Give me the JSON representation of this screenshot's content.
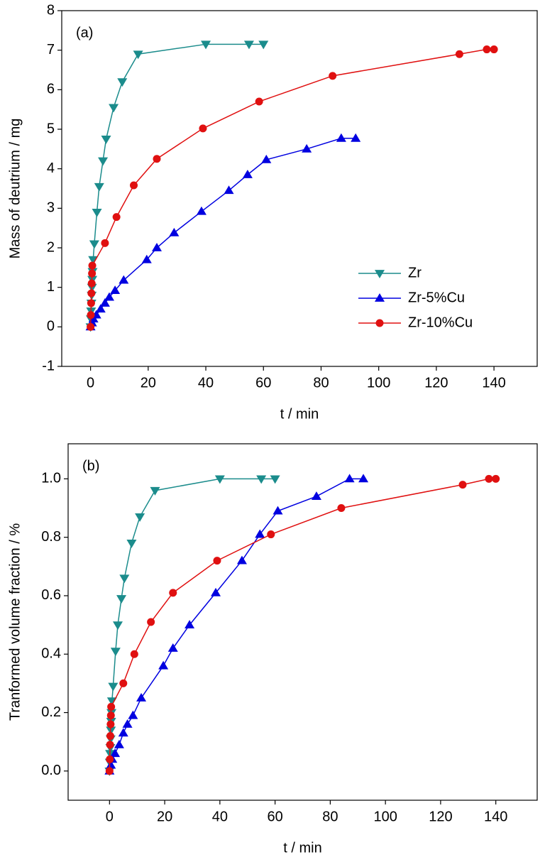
{
  "chart_data": [
    {
      "type": "line",
      "annotation": "(a)",
      "xlabel": "t / min",
      "ylabel": "Mass of deutrium / mg",
      "xlim": [
        -10,
        155
      ],
      "ylim": [
        -1,
        8
      ],
      "xticks": [
        0,
        20,
        40,
        60,
        80,
        100,
        120,
        140
      ],
      "yticks": [
        -1,
        0,
        1,
        2,
        3,
        4,
        5,
        6,
        7,
        8
      ],
      "legend": "lower right",
      "series": [
        {
          "name": "Zr",
          "color": "#1b8c8c",
          "marker": "triangle-down",
          "x": [
            0,
            0.1,
            0.2,
            0.3,
            0.4,
            0.5,
            0.6,
            0.7,
            0.9,
            1.3,
            2.2,
            3,
            4.3,
            5.4,
            8,
            11,
            16.5,
            40,
            55,
            60
          ],
          "values": [
            0,
            0.2,
            0.4,
            0.6,
            0.8,
            1.0,
            1.2,
            1.4,
            1.7,
            2.1,
            2.9,
            3.55,
            4.2,
            4.75,
            5.55,
            6.2,
            6.9,
            7.15,
            7.15,
            7.15
          ]
        },
        {
          "name": "Zr-5%Cu",
          "color": "#0000e0",
          "marker": "triangle-up",
          "x": [
            0,
            0.5,
            1,
            2,
            3.5,
            5,
            6.5,
            8.5,
            11.5,
            19.5,
            23,
            29,
            38.5,
            48,
            54.5,
            61,
            75,
            87,
            92
          ],
          "values": [
            0,
            0.1,
            0.2,
            0.3,
            0.45,
            0.6,
            0.75,
            0.92,
            1.18,
            1.7,
            2.0,
            2.38,
            2.92,
            3.45,
            3.85,
            4.23,
            4.5,
            4.77,
            4.77
          ]
        },
        {
          "name": "Zr-10%Cu",
          "color": "#e01010",
          "marker": "circle",
          "x": [
            0,
            0.1,
            0.2,
            0.3,
            0.4,
            0.5,
            0.6,
            5,
            9,
            15,
            23,
            39,
            58.5,
            84,
            128,
            137.5,
            140
          ],
          "values": [
            0,
            0.3,
            0.6,
            0.85,
            1.1,
            1.35,
            1.55,
            2.12,
            2.78,
            3.58,
            4.25,
            5.02,
            5.7,
            6.35,
            6.9,
            7.02,
            7.02
          ]
        }
      ]
    },
    {
      "type": "line",
      "annotation": "(b)",
      "xlabel": "t / min",
      "ylabel": "Tranformed volume fraction / %",
      "xlim": [
        -15,
        155
      ],
      "ylim": [
        -0.1,
        1.12
      ],
      "xticks": [
        0,
        20,
        40,
        60,
        80,
        100,
        120,
        140
      ],
      "yticks": [
        {
          "value": 0,
          "label": "0.0"
        },
        0.2,
        0.4,
        0.6,
        0.8,
        {
          "value": 1,
          "label": "1.0"
        }
      ],
      "series": [
        {
          "name": "Zr",
          "color": "#1b8c8c",
          "marker": "triangle-down",
          "x": [
            0,
            0.1,
            0.2,
            0.3,
            0.4,
            0.5,
            0.6,
            0.7,
            0.9,
            1.3,
            2.2,
            3,
            4.3,
            5.4,
            8,
            11,
            16.5,
            40,
            55,
            60
          ],
          "values": [
            0,
            0.03,
            0.06,
            0.08,
            0.11,
            0.14,
            0.17,
            0.2,
            0.24,
            0.29,
            0.41,
            0.5,
            0.59,
            0.66,
            0.78,
            0.87,
            0.96,
            1.0,
            1.0,
            1.0
          ]
        },
        {
          "name": "Zr-5%Cu",
          "color": "#0000e0",
          "marker": "triangle-up",
          "x": [
            0,
            0.5,
            1,
            2,
            3.5,
            5,
            6.5,
            8.5,
            11.5,
            19.5,
            23,
            29,
            38.5,
            48,
            54.5,
            61,
            75,
            87,
            92
          ],
          "values": [
            0,
            0.02,
            0.04,
            0.06,
            0.09,
            0.13,
            0.16,
            0.19,
            0.25,
            0.36,
            0.42,
            0.5,
            0.61,
            0.72,
            0.81,
            0.89,
            0.94,
            1.0,
            1.0
          ]
        },
        {
          "name": "Zr-10%Cu",
          "color": "#e01010",
          "marker": "circle",
          "x": [
            0,
            0.1,
            0.2,
            0.3,
            0.4,
            0.5,
            0.6,
            5,
            9,
            15,
            23,
            39,
            58.5,
            84,
            128,
            137.5,
            140
          ],
          "values": [
            0,
            0.04,
            0.09,
            0.12,
            0.16,
            0.19,
            0.22,
            0.3,
            0.4,
            0.51,
            0.61,
            0.72,
            0.81,
            0.9,
            0.98,
            1.0,
            1.0
          ]
        }
      ]
    }
  ]
}
